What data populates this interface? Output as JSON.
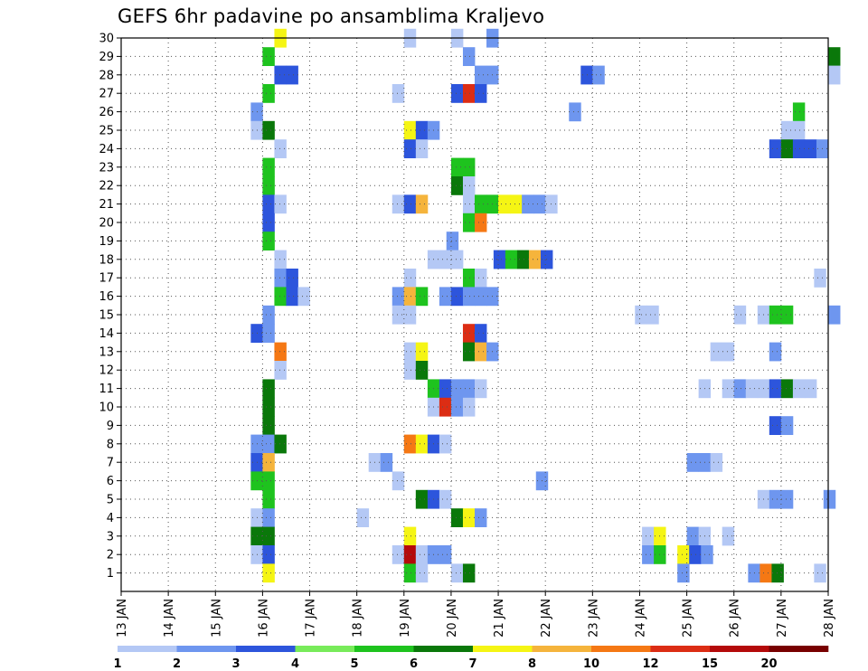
{
  "chart_data": {
    "type": "heatmap",
    "title": "GEFS 6hr padavine po ansamblima Kraljevo",
    "xlabel": "",
    "ylabel": "",
    "x_tick_labels": [
      "13 JAN",
      "14 JAN",
      "15 JAN",
      "16 JAN",
      "17 JAN",
      "18 JAN",
      "19 JAN",
      "20 JAN",
      "21 JAN",
      "22 JAN",
      "23 JAN",
      "24 JAN",
      "25 JAN",
      "26 JAN",
      "27 JAN",
      "28 JAN"
    ],
    "x_range_days": [
      13,
      28
    ],
    "y_tick_labels": [
      "1",
      "2",
      "3",
      "4",
      "5",
      "6",
      "7",
      "8",
      "9",
      "10",
      "11",
      "12",
      "13",
      "14",
      "15",
      "16",
      "17",
      "18",
      "19",
      "20",
      "21",
      "22",
      "23",
      "24",
      "25",
      "26",
      "27",
      "28",
      "29",
      "30"
    ],
    "y_range": [
      0,
      30
    ],
    "grid": true,
    "colorbar": {
      "position": "bottom",
      "labels": [
        "1",
        "2",
        "3",
        "4",
        "5",
        "6",
        "7",
        "8",
        "10",
        "12",
        "15",
        "20"
      ],
      "colors": [
        "#b4c8f5",
        "#6e96ef",
        "#2d55dc",
        "#78eb5a",
        "#1ec31e",
        "#0a780a",
        "#f5f514",
        "#f5b43c",
        "#f57814",
        "#dc2d14",
        "#b40a0a",
        "#780000"
      ]
    },
    "step_days": 0.25,
    "cells": [
      {
        "m": 30,
        "s": [
          [
            16.25,
            6
          ],
          [
            19.0,
            0
          ],
          [
            20.0,
            0
          ],
          [
            20.75,
            1
          ]
        ]
      },
      {
        "m": 29,
        "s": [
          [
            16.0,
            4
          ],
          [
            20.25,
            1
          ],
          [
            28.0,
            5
          ]
        ]
      },
      {
        "m": 28,
        "s": [
          [
            16.25,
            2
          ],
          [
            16.5,
            2
          ],
          [
            20.5,
            1
          ],
          [
            20.75,
            1
          ],
          [
            22.75,
            2
          ],
          [
            23.0,
            1
          ],
          [
            28.0,
            0
          ]
        ]
      },
      {
        "m": 27,
        "s": [
          [
            16.0,
            4
          ],
          [
            18.75,
            0
          ],
          [
            20.0,
            2
          ],
          [
            20.25,
            9
          ],
          [
            20.5,
            2
          ]
        ]
      },
      {
        "m": 26,
        "s": [
          [
            15.75,
            1
          ],
          [
            22.5,
            1
          ],
          [
            27.25,
            4
          ]
        ]
      },
      {
        "m": 25,
        "s": [
          [
            15.75,
            0
          ],
          [
            16.0,
            5
          ],
          [
            19.0,
            6
          ],
          [
            19.25,
            2
          ],
          [
            19.5,
            1
          ],
          [
            27.0,
            0
          ],
          [
            27.25,
            0
          ]
        ]
      },
      {
        "m": 24,
        "s": [
          [
            16.25,
            0
          ],
          [
            19.0,
            2
          ],
          [
            19.25,
            0
          ],
          [
            26.75,
            2
          ],
          [
            27.0,
            5
          ],
          [
            27.25,
            2
          ],
          [
            27.5,
            2
          ],
          [
            27.75,
            1
          ]
        ]
      },
      {
        "m": 23,
        "s": [
          [
            16.0,
            4
          ],
          [
            20.0,
            4
          ],
          [
            20.25,
            4
          ]
        ]
      },
      {
        "m": 22,
        "s": [
          [
            16.0,
            4
          ],
          [
            20.0,
            5
          ],
          [
            20.25,
            0
          ]
        ]
      },
      {
        "m": 21,
        "s": [
          [
            16.0,
            2
          ],
          [
            16.25,
            0
          ],
          [
            18.75,
            0
          ],
          [
            19.0,
            2
          ],
          [
            19.25,
            7
          ],
          [
            20.25,
            0
          ],
          [
            20.5,
            4
          ],
          [
            20.75,
            4
          ],
          [
            21.0,
            6
          ],
          [
            21.25,
            6
          ],
          [
            21.5,
            1
          ],
          [
            21.75,
            1
          ],
          [
            22.0,
            0
          ]
        ]
      },
      {
        "m": 20,
        "s": [
          [
            16.0,
            2
          ],
          [
            20.25,
            4
          ],
          [
            20.5,
            8
          ]
        ]
      },
      {
        "m": 19,
        "s": [
          [
            16.0,
            4
          ],
          [
            19.9,
            1
          ]
        ]
      },
      {
        "m": 18,
        "s": [
          [
            16.25,
            0
          ],
          [
            19.5,
            0
          ],
          [
            19.75,
            0
          ],
          [
            20.0,
            0
          ],
          [
            20.9,
            2
          ],
          [
            21.15,
            4
          ],
          [
            21.4,
            5
          ],
          [
            21.65,
            7
          ],
          [
            21.9,
            2
          ]
        ]
      },
      {
        "m": 17,
        "s": [
          [
            16.25,
            1
          ],
          [
            16.5,
            2
          ],
          [
            19.0,
            0
          ],
          [
            20.25,
            4
          ],
          [
            20.5,
            0
          ],
          [
            27.7,
            0
          ]
        ]
      },
      {
        "m": 16,
        "s": [
          [
            16.25,
            4
          ],
          [
            16.5,
            2
          ],
          [
            16.75,
            0
          ],
          [
            18.75,
            1
          ],
          [
            19.0,
            7
          ],
          [
            19.25,
            4
          ],
          [
            19.75,
            1
          ],
          [
            20.0,
            2
          ],
          [
            20.25,
            1
          ],
          [
            20.5,
            1
          ],
          [
            20.75,
            1
          ]
        ]
      },
      {
        "m": 15,
        "s": [
          [
            16.0,
            1
          ],
          [
            18.75,
            0
          ],
          [
            19.0,
            0
          ],
          [
            23.9,
            0
          ],
          [
            24.15,
            0
          ],
          [
            26.0,
            0
          ],
          [
            26.5,
            0
          ],
          [
            26.75,
            4
          ],
          [
            27.0,
            4
          ],
          [
            28.0,
            1
          ]
        ]
      },
      {
        "m": 14,
        "s": [
          [
            15.75,
            2
          ],
          [
            16.0,
            1
          ],
          [
            20.25,
            9
          ],
          [
            20.5,
            2
          ]
        ]
      },
      {
        "m": 13,
        "s": [
          [
            16.25,
            8
          ],
          [
            19.0,
            0
          ],
          [
            19.25,
            6
          ],
          [
            20.25,
            5
          ],
          [
            20.5,
            7
          ],
          [
            20.75,
            1
          ],
          [
            25.5,
            0
          ],
          [
            25.75,
            0
          ],
          [
            26.75,
            1
          ]
        ]
      },
      {
        "m": 12,
        "s": [
          [
            16.25,
            0
          ],
          [
            19.0,
            0
          ],
          [
            19.25,
            5
          ]
        ]
      },
      {
        "m": 11,
        "s": [
          [
            16.0,
            5
          ],
          [
            19.5,
            4
          ],
          [
            19.75,
            2
          ],
          [
            20.0,
            1
          ],
          [
            20.25,
            1
          ],
          [
            20.5,
            0
          ],
          [
            25.25,
            0
          ],
          [
            25.75,
            0
          ],
          [
            26.0,
            1
          ],
          [
            26.25,
            0
          ],
          [
            26.5,
            0
          ],
          [
            26.75,
            2
          ],
          [
            27.0,
            5
          ],
          [
            27.25,
            0
          ],
          [
            27.5,
            0
          ]
        ]
      },
      {
        "m": 10,
        "s": [
          [
            16.0,
            5
          ],
          [
            19.5,
            0
          ],
          [
            19.75,
            9
          ],
          [
            20.0,
            1
          ],
          [
            20.25,
            0
          ]
        ]
      },
      {
        "m": 9,
        "s": [
          [
            16.0,
            5
          ],
          [
            26.75,
            2
          ],
          [
            27.0,
            1
          ]
        ]
      },
      {
        "m": 8,
        "s": [
          [
            15.75,
            1
          ],
          [
            16.0,
            1
          ],
          [
            16.25,
            5
          ],
          [
            19.0,
            8
          ],
          [
            19.25,
            6
          ],
          [
            19.5,
            2
          ],
          [
            19.75,
            0
          ]
        ]
      },
      {
        "m": 7,
        "s": [
          [
            15.75,
            2
          ],
          [
            16.0,
            7
          ],
          [
            18.25,
            0
          ],
          [
            18.5,
            1
          ],
          [
            25.0,
            1
          ],
          [
            25.25,
            1
          ],
          [
            25.5,
            0
          ]
        ]
      },
      {
        "m": 6,
        "s": [
          [
            15.75,
            4
          ],
          [
            16.0,
            4
          ],
          [
            18.75,
            0
          ],
          [
            21.8,
            1
          ]
        ]
      },
      {
        "m": 5,
        "s": [
          [
            16.0,
            4
          ],
          [
            19.25,
            5
          ],
          [
            19.5,
            2
          ],
          [
            19.75,
            0
          ],
          [
            26.5,
            0
          ],
          [
            26.75,
            1
          ],
          [
            27.0,
            1
          ],
          [
            27.9,
            1
          ]
        ]
      },
      {
        "m": 4,
        "s": [
          [
            15.75,
            0
          ],
          [
            16.0,
            1
          ],
          [
            18.0,
            0
          ],
          [
            20.0,
            5
          ],
          [
            20.25,
            6
          ],
          [
            20.5,
            1
          ]
        ]
      },
      {
        "m": 3,
        "s": [
          [
            15.75,
            5
          ],
          [
            16.0,
            5
          ],
          [
            19.0,
            6
          ],
          [
            24.05,
            0
          ],
          [
            24.3,
            6
          ],
          [
            25.0,
            1
          ],
          [
            25.25,
            0
          ],
          [
            25.75,
            0
          ]
        ]
      },
      {
        "m": 2,
        "s": [
          [
            15.75,
            0
          ],
          [
            16.0,
            2
          ],
          [
            18.75,
            0
          ],
          [
            19.0,
            10
          ],
          [
            19.25,
            0
          ],
          [
            19.5,
            1
          ],
          [
            19.75,
            1
          ],
          [
            24.05,
            1
          ],
          [
            24.3,
            4
          ],
          [
            24.8,
            6
          ],
          [
            25.05,
            2
          ],
          [
            25.3,
            1
          ]
        ]
      },
      {
        "m": 1,
        "s": [
          [
            16.0,
            6
          ],
          [
            19.0,
            4
          ],
          [
            19.25,
            0
          ],
          [
            20.0,
            0
          ],
          [
            20.25,
            5
          ],
          [
            24.8,
            1
          ],
          [
            26.3,
            1
          ],
          [
            26.55,
            8
          ],
          [
            26.8,
            5
          ],
          [
            27.7,
            0
          ]
        ]
      }
    ]
  }
}
